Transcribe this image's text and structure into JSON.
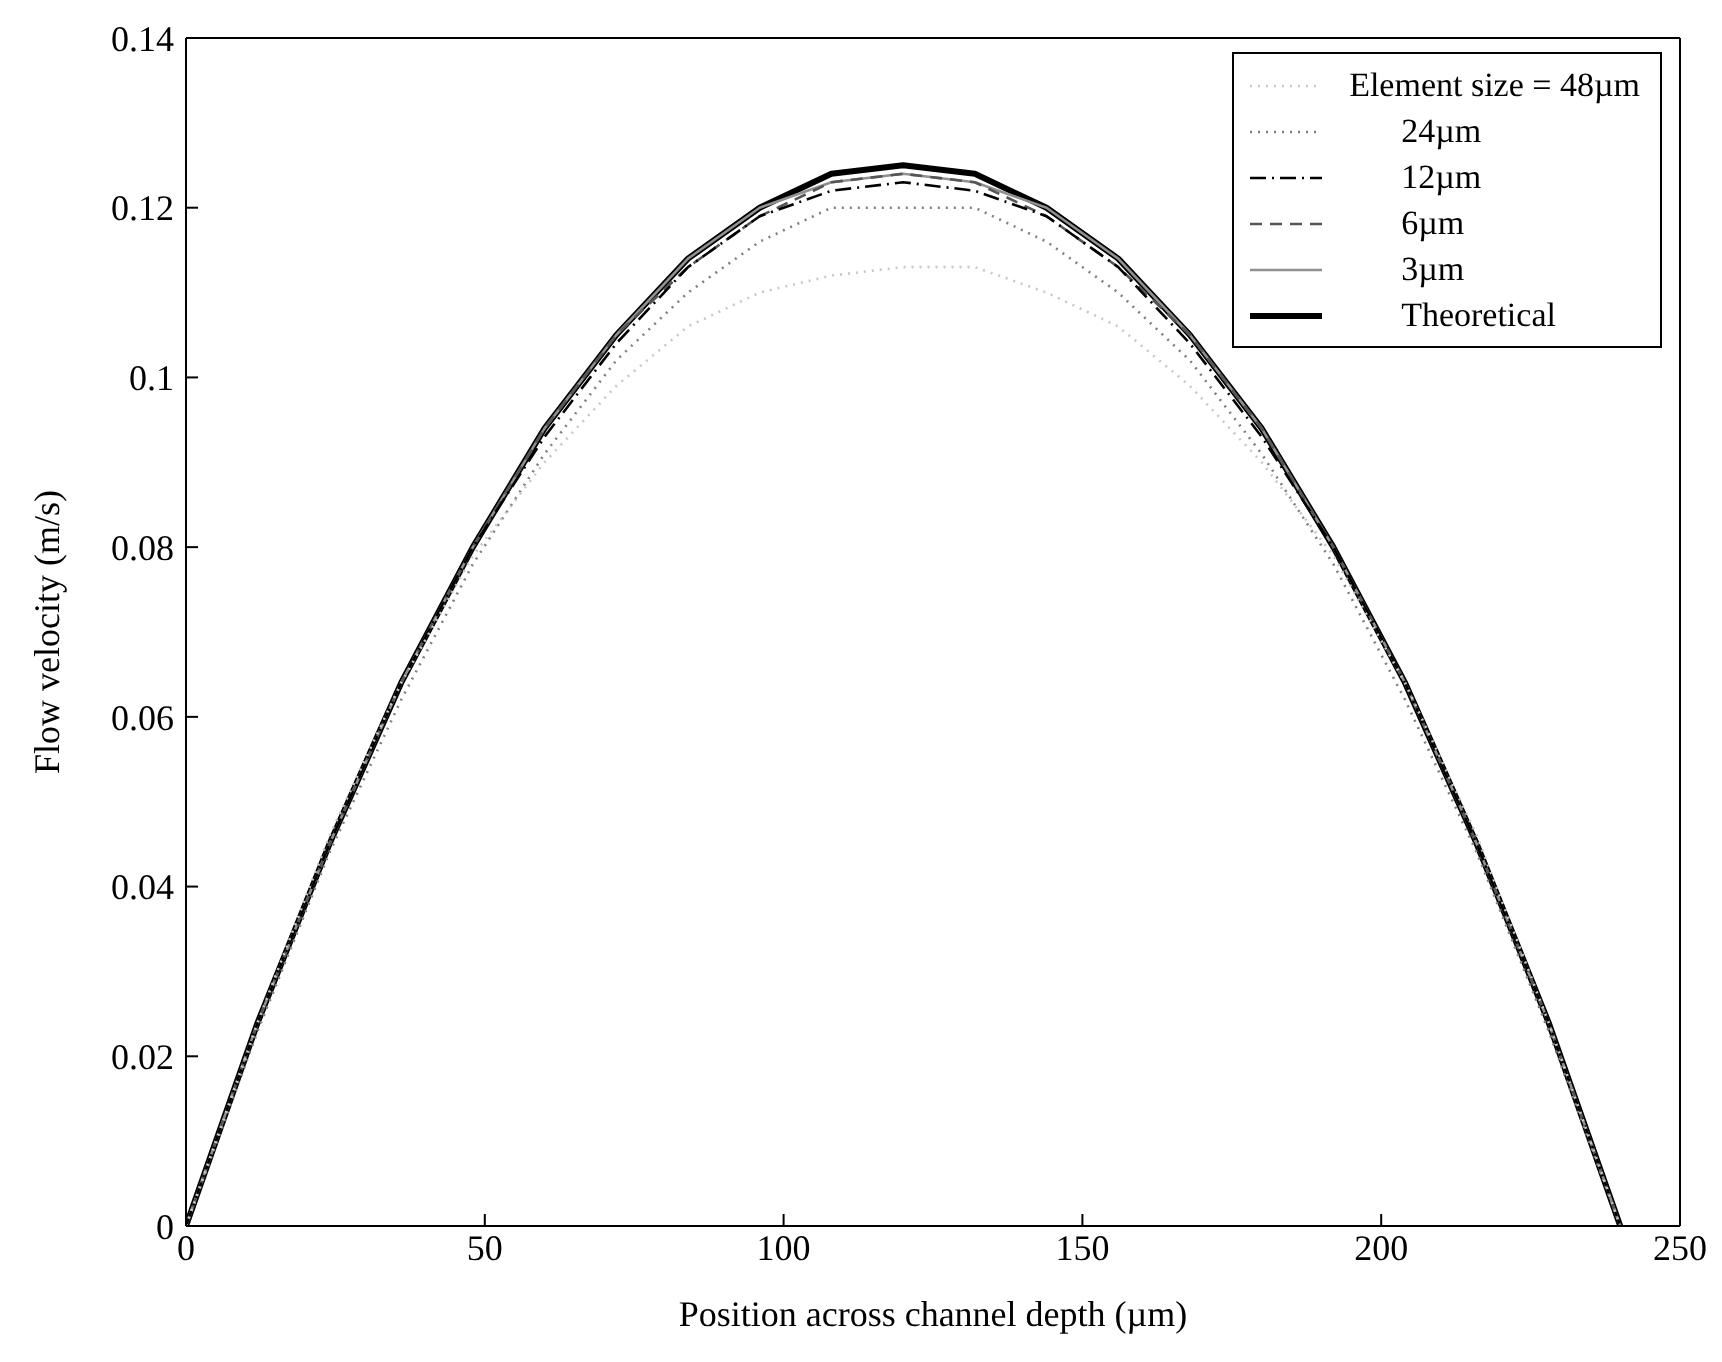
{
  "chart_data": {
    "type": "line",
    "xlabel": "Position across channel depth (µm)",
    "ylabel": "Flow velocity (m/s)",
    "x": [
      0,
      12,
      24,
      36,
      48,
      60,
      72,
      84,
      96,
      108,
      120,
      132,
      144,
      156,
      168,
      180,
      192,
      204,
      216,
      228,
      240
    ],
    "xlim": [
      0,
      250
    ],
    "xticks": [
      0,
      50,
      100,
      150,
      200,
      250
    ],
    "ylim": [
      0,
      0.14
    ],
    "yticks": [
      0,
      0.02,
      0.04,
      0.06,
      0.08,
      0.1,
      0.12,
      0.14
    ],
    "grid": false,
    "legend": "top right",
    "marker": "none",
    "series": [
      {
        "name": "Element size = 48µm",
        "color": "#c8c8c8",
        "line_style": "dotted",
        "values": [
          0,
          0.024,
          0.046,
          0.064,
          0.079,
          0.09,
          0.099,
          0.106,
          0.11,
          0.112,
          0.113,
          0.113,
          0.11,
          0.106,
          0.099,
          0.09,
          0.079,
          0.064,
          0.046,
          0.024,
          0
        ]
      },
      {
        "name": "24µm",
        "color": "#808080",
        "line_style": "dotted",
        "values": [
          0,
          0.023,
          0.044,
          0.062,
          0.078,
          0.091,
          0.102,
          0.11,
          0.116,
          0.12,
          0.12,
          0.12,
          0.116,
          0.11,
          0.102,
          0.091,
          0.078,
          0.062,
          0.044,
          0.023,
          0
        ]
      },
      {
        "name": "12µm",
        "color": "#000000",
        "line_style": "dashdot",
        "values": [
          0,
          0.024,
          0.045,
          0.064,
          0.08,
          0.093,
          0.104,
          0.113,
          0.119,
          0.122,
          0.123,
          0.122,
          0.119,
          0.113,
          0.104,
          0.093,
          0.08,
          0.064,
          0.045,
          0.024,
          0
        ]
      },
      {
        "name": "6µm",
        "color": "#555555",
        "line_style": "dashed",
        "values": [
          0,
          0.024,
          0.045,
          0.064,
          0.08,
          0.094,
          0.105,
          0.113,
          0.119,
          0.123,
          0.124,
          0.123,
          0.119,
          0.113,
          0.105,
          0.094,
          0.08,
          0.064,
          0.045,
          0.024,
          0
        ]
      },
      {
        "name": "3µm",
        "color": "#909090",
        "line_style": "solid",
        "values": [
          0,
          0.024,
          0.045,
          0.064,
          0.08,
          0.094,
          0.105,
          0.114,
          0.12,
          0.123,
          0.124,
          0.123,
          0.12,
          0.114,
          0.105,
          0.094,
          0.08,
          0.064,
          0.045,
          0.024,
          0
        ]
      },
      {
        "name": "Theoretical",
        "color": "#000000",
        "line_style": "solid",
        "values": [
          0,
          0.024,
          0.045,
          0.064,
          0.08,
          0.094,
          0.105,
          0.114,
          0.12,
          0.124,
          0.125,
          0.124,
          0.12,
          0.114,
          0.105,
          0.094,
          0.08,
          0.064,
          0.045,
          0.024,
          0
        ]
      }
    ]
  }
}
